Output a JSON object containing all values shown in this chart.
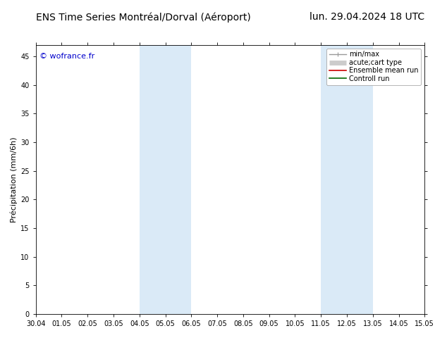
{
  "title_left": "ENS Time Series Montréal/Dorval (Aéroport)",
  "title_right": "lun. 29.04.2024 18 UTC",
  "ylabel": "Précipitation (mm/6h)",
  "watermark": "© wofrance.fr",
  "xticklabels": [
    "30.04",
    "01.05",
    "02.05",
    "03.05",
    "04.05",
    "05.05",
    "06.05",
    "07.05",
    "08.05",
    "09.05",
    "10.05",
    "11.05",
    "12.05",
    "13.05",
    "14.05",
    "15.05"
  ],
  "xlim": [
    0,
    15
  ],
  "ylim": [
    0,
    47
  ],
  "yticks": [
    0,
    5,
    10,
    15,
    20,
    25,
    30,
    35,
    40,
    45
  ],
  "shaded_regions": [
    {
      "xmin": 4.0,
      "xmax": 6.0,
      "color": "#daeaf7"
    },
    {
      "xmin": 11.0,
      "xmax": 13.0,
      "color": "#daeaf7"
    }
  ],
  "legend_entries": [
    {
      "label": "min/max",
      "color": "#999999",
      "lw": 1.0,
      "style": "line_with_cap"
    },
    {
      "label": "acute;cart type",
      "color": "#cccccc",
      "lw": 5,
      "style": "thick"
    },
    {
      "label": "Ensemble mean run",
      "color": "#cc0000",
      "lw": 1.2,
      "style": "line"
    },
    {
      "label": "Controll run",
      "color": "#006600",
      "lw": 1.2,
      "style": "line"
    }
  ],
  "background_color": "#ffffff",
  "title_fontsize": 10,
  "tick_fontsize": 7,
  "ylabel_fontsize": 8,
  "watermark_color": "#0000cc",
  "watermark_fontsize": 8,
  "legend_fontsize": 7
}
